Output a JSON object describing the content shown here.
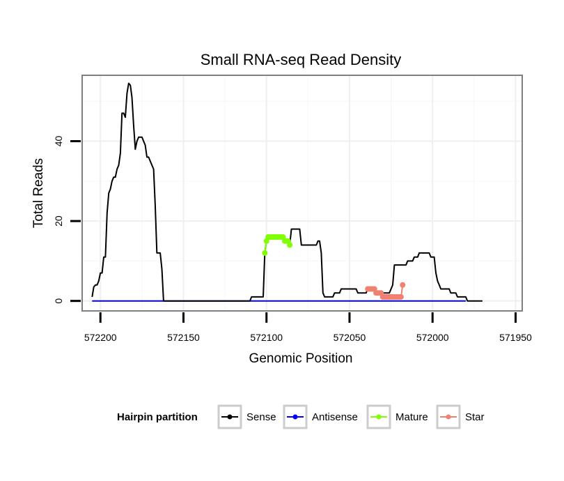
{
  "chart_data": {
    "type": "line",
    "title": "Small RNA-seq Read Density",
    "xlabel": "Genomic Position",
    "ylabel": "Total Reads",
    "xlim": [
      572211,
      571946
    ],
    "ylim": [
      -2.5,
      56.5
    ],
    "x_reversed": true,
    "x_ticks": [
      572200,
      572150,
      572100,
      572050,
      572000,
      571950
    ],
    "x_tick_labels": [
      "572200",
      "572150",
      "572100",
      "572050",
      "572000",
      "571950"
    ],
    "y_ticks": [
      0,
      20,
      40
    ],
    "y_tick_labels": [
      "0",
      "20",
      "40"
    ],
    "grid": true,
    "legend_position": "bottom",
    "legend_title": "Hairpin partition",
    "series": [
      {
        "name": "Sense",
        "color": "#000000",
        "style": "line",
        "points": [
          [
            572205,
            1
          ],
          [
            572204,
            3.5
          ],
          [
            572203,
            4
          ],
          [
            572202,
            4
          ],
          [
            572201,
            5
          ],
          [
            572200,
            7
          ],
          [
            572199,
            7
          ],
          [
            572198,
            11
          ],
          [
            572197,
            11
          ],
          [
            572196,
            22
          ],
          [
            572195,
            27
          ],
          [
            572194,
            28
          ],
          [
            572193,
            30
          ],
          [
            572192,
            31
          ],
          [
            572191,
            31
          ],
          [
            572190,
            33
          ],
          [
            572189,
            34
          ],
          [
            572188,
            37
          ],
          [
            572187,
            47
          ],
          [
            572186,
            47
          ],
          [
            572185,
            46
          ],
          [
            572184,
            52
          ],
          [
            572183,
            54.5
          ],
          [
            572182,
            54
          ],
          [
            572181,
            51
          ],
          [
            572180,
            44
          ],
          [
            572179,
            38
          ],
          [
            572178,
            40
          ],
          [
            572177,
            41
          ],
          [
            572176,
            41
          ],
          [
            572175,
            41
          ],
          [
            572174,
            40
          ],
          [
            572173,
            39
          ],
          [
            572172,
            36
          ],
          [
            572171,
            36
          ],
          [
            572170,
            35
          ],
          [
            572169,
            34
          ],
          [
            572168,
            33
          ],
          [
            572167,
            24
          ],
          [
            572166,
            12
          ],
          [
            572165,
            12
          ],
          [
            572164,
            12
          ],
          [
            572163,
            8
          ],
          [
            572162,
            0
          ],
          [
            572160,
            0
          ],
          [
            572140,
            0
          ],
          [
            572120,
            0
          ],
          [
            572110,
            0
          ],
          [
            572109,
            1
          ],
          [
            572102,
            1
          ],
          [
            572101,
            12
          ],
          [
            572100,
            15
          ],
          [
            572099,
            16
          ],
          [
            572090,
            16
          ],
          [
            572089,
            15
          ],
          [
            572087,
            15
          ],
          [
            572086,
            14
          ],
          [
            572085,
            18
          ],
          [
            572080,
            18
          ],
          [
            572079,
            14
          ],
          [
            572070,
            14
          ],
          [
            572069,
            15
          ],
          [
            572068,
            15
          ],
          [
            572067,
            12
          ],
          [
            572066,
            2
          ],
          [
            572065,
            1
          ],
          [
            572060,
            1
          ],
          [
            572059,
            2
          ],
          [
            572056,
            2
          ],
          [
            572055,
            3
          ],
          [
            572046,
            3
          ],
          [
            572045,
            2
          ],
          [
            572040,
            2
          ],
          [
            572039,
            3
          ],
          [
            572035,
            3
          ],
          [
            572034,
            2
          ],
          [
            572026,
            2
          ],
          [
            572025,
            3
          ],
          [
            572024,
            4
          ],
          [
            572023,
            9
          ],
          [
            572016,
            9
          ],
          [
            572015,
            10
          ],
          [
            572012,
            10
          ],
          [
            572011,
            11
          ],
          [
            572009,
            11
          ],
          [
            572008,
            12
          ],
          [
            572002,
            12
          ],
          [
            572001,
            11
          ],
          [
            571999,
            11
          ],
          [
            571998,
            7
          ],
          [
            571997,
            5
          ],
          [
            571996,
            4
          ],
          [
            571995,
            3
          ],
          [
            571990,
            3
          ],
          [
            571989,
            2
          ],
          [
            571986,
            2
          ],
          [
            571985,
            1
          ],
          [
            571980,
            1
          ],
          [
            571979,
            0
          ],
          [
            571970,
            0
          ]
        ]
      },
      {
        "name": "Antisense",
        "color": "#0000ff",
        "style": "line",
        "points": [
          [
            572205,
            0
          ],
          [
            571980,
            0
          ]
        ]
      },
      {
        "name": "Mature",
        "color": "#7fff00",
        "style": "line+points",
        "points": [
          [
            572101,
            12
          ],
          [
            572100,
            15
          ],
          [
            572099,
            16
          ],
          [
            572098,
            16
          ],
          [
            572097,
            16
          ],
          [
            572096,
            16
          ],
          [
            572095,
            16
          ],
          [
            572094,
            16
          ],
          [
            572093,
            16
          ],
          [
            572092,
            16
          ],
          [
            572091,
            16
          ],
          [
            572090,
            16
          ],
          [
            572089,
            15
          ],
          [
            572088,
            15
          ],
          [
            572087,
            15
          ],
          [
            572086,
            14
          ]
        ]
      },
      {
        "name": "Star",
        "color": "#f08070",
        "style": "line+points",
        "points": [
          [
            572039,
            3
          ],
          [
            572038,
            3
          ],
          [
            572037,
            3
          ],
          [
            572036,
            3
          ],
          [
            572035,
            3
          ],
          [
            572034,
            2
          ],
          [
            572033,
            2
          ],
          [
            572032,
            2
          ],
          [
            572031,
            2
          ],
          [
            572030,
            1
          ],
          [
            572029,
            1
          ],
          [
            572028,
            1
          ],
          [
            572027,
            1
          ],
          [
            572026,
            1
          ],
          [
            572025,
            1
          ],
          [
            572024,
            1
          ],
          [
            572023,
            1
          ],
          [
            572022,
            1
          ],
          [
            572021,
            1
          ],
          [
            572020,
            1
          ],
          [
            572019,
            1
          ],
          [
            572018,
            4
          ]
        ]
      }
    ]
  }
}
